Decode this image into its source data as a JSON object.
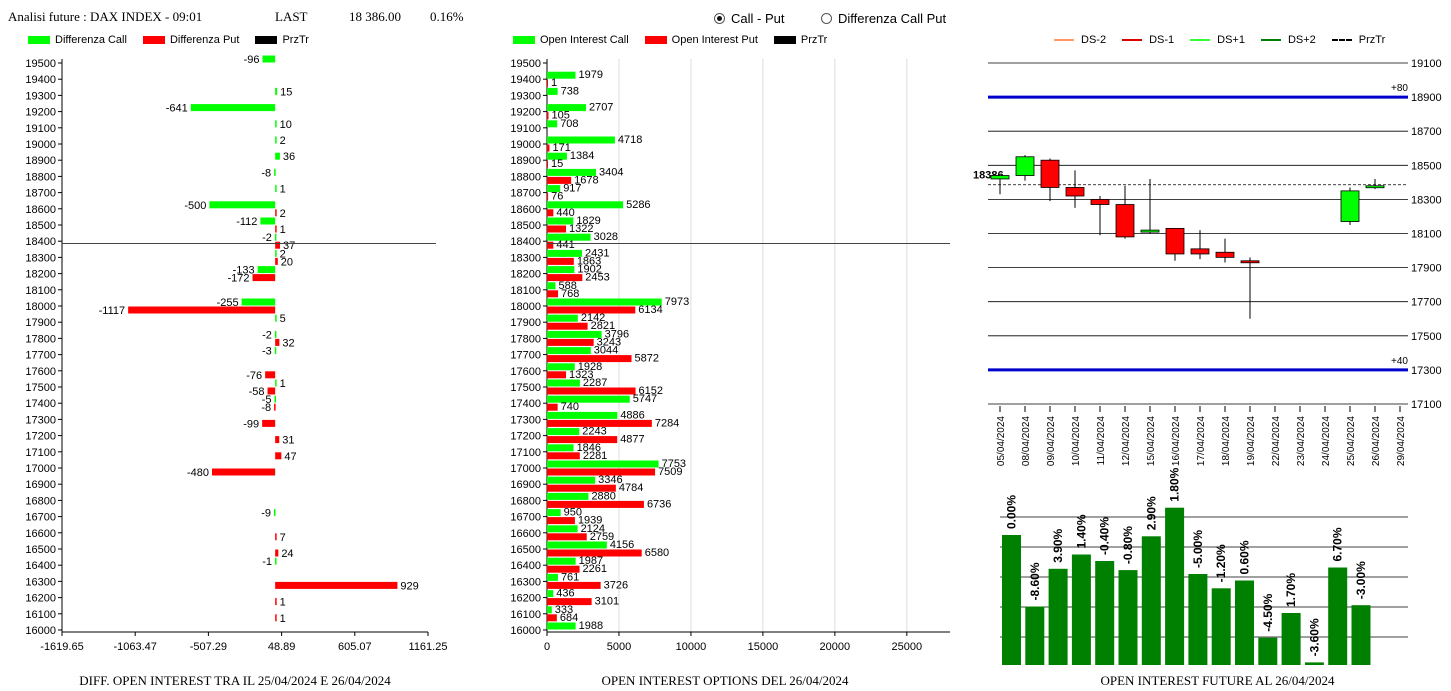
{
  "header": {
    "title": "Analisi future : DAX INDEX - 09:01",
    "last_label": "LAST",
    "last_value": "18 386.00",
    "change": "0.16%"
  },
  "radio": {
    "call_put": "Call - Put",
    "diff": "Differenza Call Put"
  },
  "colors": {
    "green": "#00ff00",
    "red": "#ff0000",
    "dark_green": "#008000",
    "blue": "#0000cc"
  },
  "legend1": {
    "a": "Differenza Call",
    "b": "Differenza Put",
    "c": "PrzTr"
  },
  "legend2": {
    "a": "Open Interest Call",
    "b": "Open Interest Put",
    "c": "PrzTr"
  },
  "legend3": {
    "a": "DS-2",
    "b": "DS-1",
    "c": "DS+1",
    "d": "DS+2",
    "e": "PrzTr"
  },
  "captions": {
    "c1": "DIFF. OPEN INTEREST TRA IL 25/04/2024 E 26/04/2024",
    "c2": "OPEN INTEREST OPTIONS DEL 26/04/2024",
    "c3": "OPEN INTEREST FUTURE AL 26/04/2024"
  },
  "chart_data": [
    {
      "type": "bar",
      "orientation": "horizontal",
      "strikes": [
        19500,
        19400,
        19300,
        19200,
        19100,
        19000,
        18900,
        18800,
        18700,
        18600,
        18500,
        18400,
        18300,
        18200,
        18100,
        18000,
        17900,
        17800,
        17700,
        17600,
        17500,
        17400,
        17300,
        17200,
        17100,
        17000,
        16900,
        16800,
        16700,
        16600,
        16500,
        16400,
        16300,
        16200,
        16100,
        16000
      ],
      "series": [
        {
          "name": "Differenza Call",
          "values": [
            -96,
            null,
            15,
            -641,
            10,
            2,
            36,
            -8,
            1,
            -500,
            -112,
            -2,
            2,
            -133,
            null,
            -255,
            5,
            -2,
            -3,
            null,
            1,
            -5,
            null,
            null,
            null,
            null,
            null,
            null,
            -9,
            null,
            null,
            -1,
            null,
            null,
            null,
            null
          ]
        },
        {
          "name": "Differenza Put",
          "values": [
            null,
            null,
            null,
            null,
            null,
            null,
            null,
            null,
            null,
            2,
            1,
            37,
            20,
            -172,
            null,
            -1117,
            null,
            32,
            null,
            -76,
            -58,
            -8,
            -99,
            31,
            47,
            -480,
            null,
            null,
            null,
            7,
            24,
            null,
            929,
            1,
            1,
            null
          ]
        }
      ],
      "price_line": 18386,
      "xticks": [
        "-1619.65",
        "-1063.47",
        "-507.29",
        "48.89",
        "605.07",
        "1161.25"
      ],
      "xlim": [
        -1619.65,
        1161.25
      ]
    },
    {
      "type": "bar",
      "orientation": "horizontal",
      "strikes": [
        19500,
        19400,
        19300,
        19200,
        19100,
        19000,
        18900,
        18800,
        18700,
        18600,
        18500,
        18400,
        18300,
        18200,
        18100,
        18000,
        17900,
        17800,
        17700,
        17600,
        17500,
        17400,
        17300,
        17200,
        17100,
        17000,
        16900,
        16800,
        16700,
        16600,
        16500,
        16400,
        16300,
        16200,
        16100,
        16000
      ],
      "series": [
        {
          "name": "Open Interest Call",
          "values": [
            null,
            1979,
            738,
            2707,
            708,
            4718,
            1384,
            3404,
            917,
            5286,
            1829,
            3028,
            2431,
            1902,
            588,
            7973,
            2142,
            3796,
            3044,
            1928,
            2287,
            5747,
            4886,
            2243,
            1846,
            7753,
            3346,
            2880,
            950,
            2124,
            4156,
            1987,
            761,
            436,
            333,
            1988
          ]
        },
        {
          "name": "Open Interest Put",
          "values": [
            null,
            1,
            null,
            105,
            null,
            171,
            15,
            1678,
            76,
            440,
            1322,
            441,
            1863,
            2453,
            768,
            6134,
            2821,
            3243,
            5872,
            1323,
            6152,
            740,
            7284,
            4877,
            2281,
            7509,
            4784,
            6736,
            1939,
            2759,
            6580,
            2261,
            3726,
            3101,
            684,
            null
          ]
        }
      ],
      "price_line": 18386,
      "xticks": [
        "0",
        "5000",
        "10000",
        "15000",
        "20000",
        "25000"
      ],
      "xlim": [
        0,
        28000
      ]
    },
    {
      "type": "candlestick",
      "dates": [
        "05/04/2024",
        "08/04/2024",
        "09/04/2024",
        "10/04/2024",
        "11/04/2024",
        "12/04/2024",
        "15/04/2024",
        "16/04/2024",
        "17/04/2024",
        "18/04/2024",
        "19/04/2024",
        "22/04/2024",
        "23/04/2024",
        "24/04/2024",
        "25/04/2024",
        "26/04/2024",
        "29/04/2024"
      ],
      "candles": [
        {
          "o": 18420,
          "h": 18440,
          "l": 18330,
          "c": 18440
        },
        {
          "o": 18440,
          "h": 18560,
          "l": 18410,
          "c": 18550
        },
        {
          "o": 18530,
          "h": 18540,
          "l": 18290,
          "c": 18370
        },
        {
          "o": 18370,
          "h": 18470,
          "l": 18250,
          "c": 18320
        },
        {
          "o": 18300,
          "h": 18320,
          "l": 18090,
          "c": 18270
        },
        {
          "o": 18270,
          "h": 18380,
          "l": 18070,
          "c": 18080
        },
        {
          "o": 18110,
          "h": 18420,
          "l": 18100,
          "c": 18120
        },
        {
          "o": 18130,
          "h": 18130,
          "l": 17940,
          "c": 17980
        },
        {
          "o": 18010,
          "h": 18120,
          "l": 17950,
          "c": 17980
        },
        {
          "o": 17990,
          "h": 18070,
          "l": 17930,
          "c": 17960
        },
        {
          "o": 17940,
          "h": 17960,
          "l": 17600,
          "c": 17930
        },
        null,
        null,
        null,
        {
          "o": 18170,
          "h": 18370,
          "l": 18150,
          "c": 18350
        },
        {
          "o": 18370,
          "h": 18420,
          "l": 18360,
          "c": 18380
        },
        null
      ],
      "price_label": "18386",
      "price_line": 18386,
      "hlines": [
        {
          "y": 18900,
          "label": "+80"
        },
        {
          "y": 17300,
          "label": "+40"
        }
      ],
      "yticks": [
        19100,
        18900,
        18700,
        18500,
        18300,
        18100,
        17900,
        17700,
        17500,
        17300,
        17100
      ],
      "ylim": [
        17100,
        19100
      ]
    },
    {
      "type": "bar",
      "values": [
        1.0,
        0.45,
        0.74,
        0.85,
        0.8,
        0.73,
        0.99,
        1.21,
        0.7,
        0.59,
        0.65,
        0.21,
        0.4,
        0.02,
        0.75,
        0.46
      ],
      "labels": [
        "0.00%",
        "-8.60%",
        "3.90%",
        "1.40%",
        "-0.40%",
        "-0.80%",
        "2.90%",
        "1.80%",
        "-5.00%",
        "-1.20%",
        "0.60%",
        "-4.50%",
        "1.70%",
        "-3.60%",
        "6.70%",
        "-3.00%"
      ]
    }
  ]
}
